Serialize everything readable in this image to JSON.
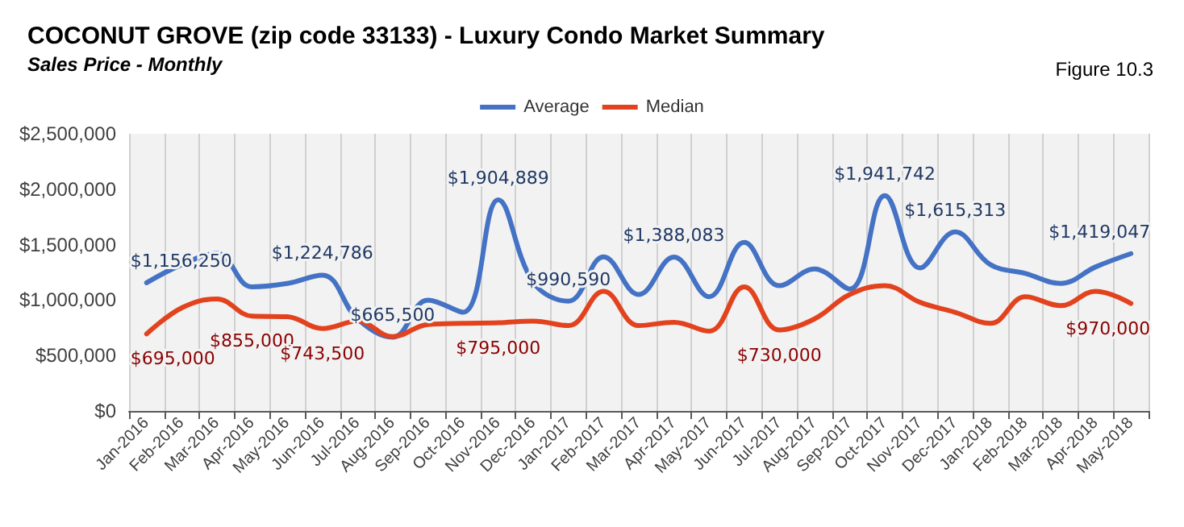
{
  "chart_data": {
    "type": "line",
    "title": "COCONUT GROVE (zip code 33133) - Luxury Condo Market Summary",
    "subtitle": "Sales Price - Monthly",
    "annotations": [
      "Figure 10.3"
    ],
    "categories": [
      "Jan-2016",
      "Feb-2016",
      "Mar-2016",
      "Apr-2016",
      "May-2016",
      "Jun-2016",
      "Jul-2016",
      "Aug-2016",
      "Sep-2016",
      "Oct-2016",
      "Nov-2016",
      "Dec-2016",
      "Jan-2017",
      "Feb-2017",
      "Mar-2017",
      "Apr-2017",
      "May-2017",
      "Jun-2017",
      "Jul-2017",
      "Aug-2017",
      "Sep-2017",
      "Oct-2017",
      "Nov-2017",
      "Dec-2017",
      "Jan-2018",
      "Feb-2018",
      "Mar-2018",
      "Apr-2018",
      "May-2018"
    ],
    "series": [
      {
        "name": "Average",
        "color": "#4472c4",
        "values": [
          1156250,
          1320000,
          1420000,
          1120000,
          1150000,
          1224786,
          830000,
          665500,
          1000000,
          890000,
          1904889,
          1160000,
          990590,
          1390000,
          1050000,
          1388083,
          1030000,
          1520000,
          1130000,
          1280000,
          1100000,
          1941742,
          1290000,
          1615313,
          1320000,
          1240000,
          1150000,
          1300000,
          1419047
        ],
        "value_labels": [
          "$1,156,250",
          null,
          null,
          null,
          null,
          "$1,224,786",
          null,
          "$665,500",
          null,
          null,
          "$1,904,889",
          null,
          "$990,590",
          null,
          null,
          "$1,388,083",
          null,
          null,
          null,
          null,
          null,
          "$1,941,742",
          null,
          "$1,615,313",
          null,
          null,
          null,
          null,
          "$1,419,047"
        ]
      },
      {
        "name": "Median",
        "color": "#e2431e",
        "values": [
          695000,
          930000,
          1010000,
          855000,
          850000,
          743500,
          810000,
          670000,
          780000,
          790000,
          795000,
          810000,
          770000,
          1080000,
          770000,
          800000,
          720000,
          1120000,
          730000,
          830000,
          1050000,
          1130000,
          980000,
          890000,
          790000,
          1030000,
          950000,
          1080000,
          970000
        ],
        "value_labels": [
          "$695,000",
          null,
          null,
          "$855,000",
          null,
          "$743,500",
          null,
          null,
          null,
          null,
          "$795,000",
          null,
          null,
          null,
          null,
          null,
          null,
          null,
          "$730,000",
          null,
          null,
          null,
          null,
          null,
          null,
          null,
          null,
          null,
          "$970,000"
        ]
      }
    ],
    "ylim": [
      0,
      2500000
    ],
    "yticks": [
      {
        "value": 0,
        "label": "$0"
      },
      {
        "value": 500000,
        "label": "$500,000"
      },
      {
        "value": 1000000,
        "label": "$1,000,000"
      },
      {
        "value": 1500000,
        "label": "$1,500,000"
      },
      {
        "value": 2000000,
        "label": "$2,000,000"
      },
      {
        "value": 2500000,
        "label": "$2,500,000"
      }
    ],
    "grid": "x",
    "legend": "top",
    "marker": "none",
    "line_style": "solid"
  }
}
